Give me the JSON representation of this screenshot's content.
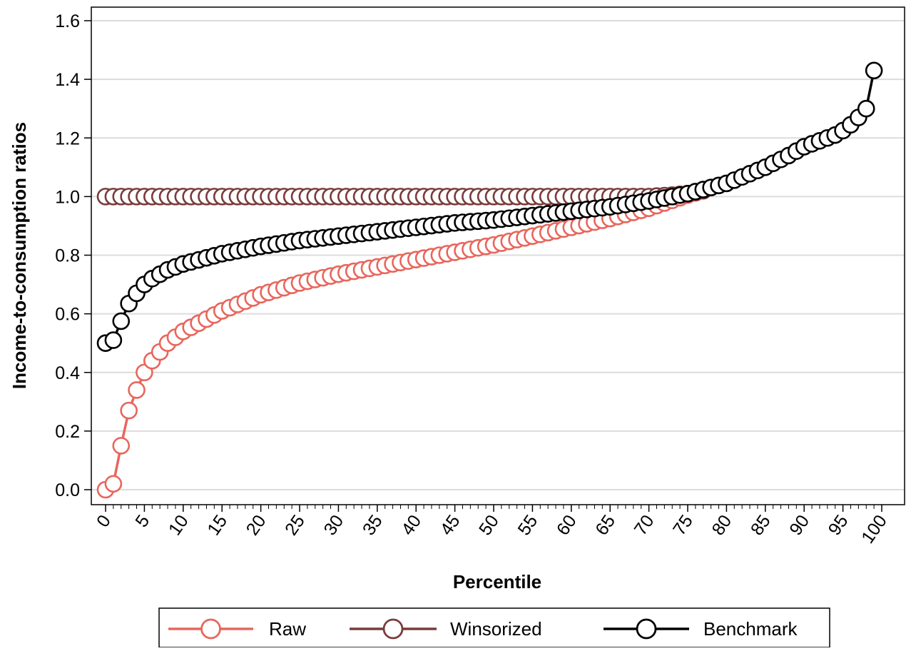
{
  "chart_data": {
    "type": "line",
    "title": "",
    "xlabel": "Percentile",
    "ylabel": "Income-to-consumption ratios",
    "xlim": [
      0,
      100
    ],
    "ylim": [
      0,
      1.6
    ],
    "x_ticks": [
      0,
      5,
      10,
      15,
      20,
      25,
      30,
      35,
      40,
      45,
      50,
      55,
      60,
      65,
      70,
      75,
      80,
      85,
      90,
      95,
      100
    ],
    "x_tick_labels": [
      "0",
      "5",
      "10",
      "15",
      "20",
      "25",
      "30",
      "35",
      "40",
      "45",
      "50",
      "55",
      "60",
      "65",
      "70",
      "75",
      "80",
      "85",
      "90",
      "95",
      "100"
    ],
    "y_ticks": [
      0,
      0.2,
      0.4,
      0.6,
      0.8,
      1.0,
      1.2,
      1.4,
      1.6
    ],
    "y_tick_labels": [
      "0.0",
      "0.2",
      "0.4",
      "0.6",
      "0.8",
      "1.0",
      "1.2",
      "1.4",
      "1.6"
    ],
    "grid": "horizontal",
    "legend_position": "bottom",
    "marker": "hollow-circle",
    "series": [
      {
        "name": "Raw",
        "color": "#e8665c",
        "x": [
          0,
          1,
          2,
          3,
          4,
          5,
          6,
          7,
          8,
          9,
          10,
          15,
          20,
          25,
          30,
          35,
          40,
          45,
          50,
          55,
          60,
          65,
          70,
          75,
          77
        ],
        "y": [
          0.0,
          0.02,
          0.15,
          0.27,
          0.34,
          0.4,
          0.44,
          0.47,
          0.5,
          0.52,
          0.54,
          0.61,
          0.665,
          0.705,
          0.735,
          0.76,
          0.785,
          0.81,
          0.835,
          0.865,
          0.895,
          0.925,
          0.96,
          1.005,
          1.02
        ]
      },
      {
        "name": "Winsorized",
        "color": "#7a3b3b",
        "x": [
          0,
          10,
          20,
          30,
          40,
          50,
          60,
          70,
          73,
          75,
          77
        ],
        "y": [
          1.0,
          1.0,
          1.0,
          1.0,
          1.0,
          1.0,
          1.0,
          1.0,
          1.005,
          1.01,
          1.02
        ]
      },
      {
        "name": "Benchmark",
        "color": "#000000",
        "x": [
          0,
          1,
          2,
          3,
          4,
          5,
          6,
          7,
          8,
          9,
          10,
          15,
          20,
          25,
          30,
          35,
          40,
          45,
          50,
          55,
          60,
          65,
          70,
          75,
          80,
          85,
          88,
          90,
          92,
          94,
          95,
          96,
          97,
          98,
          99
        ],
        "y": [
          0.5,
          0.51,
          0.575,
          0.635,
          0.67,
          0.7,
          0.72,
          0.735,
          0.75,
          0.76,
          0.77,
          0.805,
          0.83,
          0.85,
          0.865,
          0.88,
          0.895,
          0.91,
          0.92,
          0.935,
          0.95,
          0.965,
          0.985,
          1.01,
          1.045,
          1.1,
          1.14,
          1.17,
          1.19,
          1.21,
          1.225,
          1.245,
          1.27,
          1.3,
          1.43
        ]
      }
    ]
  }
}
